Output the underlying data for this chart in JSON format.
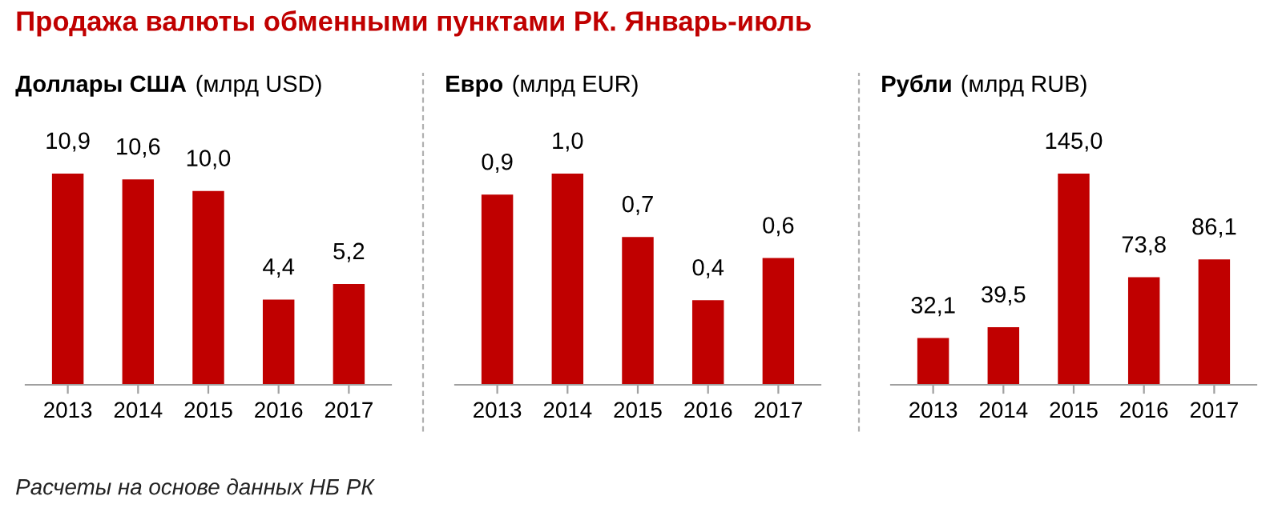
{
  "chart_data": [
    {
      "type": "other",
      "title": "Продажа валюты обменными пунктами РК. Январь-июль",
      "annotations": [
        "Расчеты на основе данных НБ РК"
      ]
    },
    {
      "type": "bar",
      "title": "Доллары США",
      "subtitle": "(млрд USD)",
      "categories": [
        "2013",
        "2014",
        "2015",
        "2016",
        "2017"
      ],
      "values": [
        10.9,
        10.6,
        10.0,
        4.4,
        5.2
      ],
      "value_labels": [
        "10,9",
        "10,6",
        "10,0",
        "4,4",
        "5,2"
      ],
      "color": "#c00000",
      "grid": false,
      "legend": false
    },
    {
      "type": "bar",
      "title": "Евро",
      "subtitle": "(млрд EUR)",
      "categories": [
        "2013",
        "2014",
        "2015",
        "2016",
        "2017"
      ],
      "values": [
        0.9,
        1.0,
        0.7,
        0.4,
        0.6
      ],
      "value_labels": [
        "0,9",
        "1,0",
        "0,7",
        "0,4",
        "0,6"
      ],
      "color": "#c00000",
      "grid": false,
      "legend": false
    },
    {
      "type": "bar",
      "title": "Рубли",
      "subtitle": "(млрд RUB)",
      "categories": [
        "2013",
        "2014",
        "2015",
        "2016",
        "2017"
      ],
      "values": [
        32.1,
        39.5,
        145.0,
        73.8,
        86.1
      ],
      "value_labels": [
        "32,1",
        "39,5",
        "145,0",
        "73,8",
        "86,1"
      ],
      "color": "#c00000",
      "grid": false,
      "legend": false
    }
  ]
}
